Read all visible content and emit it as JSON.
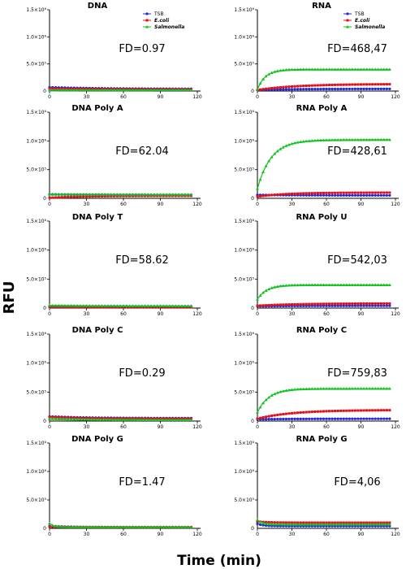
{
  "chart_data": {
    "type": "line",
    "xlabel": "Time (min)",
    "ylabel": "RFU",
    "xlim": [
      0,
      120
    ],
    "ylim": [
      0,
      1500000
    ],
    "x_ticks": [
      "0",
      "30",
      "60",
      "90",
      "120"
    ],
    "y_ticks": [
      "5.0×10⁵",
      "1.0×10⁶",
      "1.5×10⁶"
    ],
    "legend": {
      "placement": "top-right",
      "entries": [
        {
          "name": "TSB",
          "color": "#1f2bd6",
          "marker": "circle"
        },
        {
          "name": "E.coli",
          "color": "#e0101c",
          "marker": "square"
        },
        {
          "name": "Salmonella",
          "color": "#12c21f",
          "marker": "triangle"
        }
      ]
    },
    "panels": [
      {
        "title": "DNA",
        "fd": "FD=0.97",
        "series": [
          {
            "name": "TSB",
            "start": 70000,
            "end": 40000,
            "tau": 40
          },
          {
            "name": "E.coli",
            "start": 45000,
            "end": 30000,
            "tau": 40
          },
          {
            "name": "Salmonella",
            "start": 15000,
            "end": 20000,
            "tau": 30
          }
        ]
      },
      {
        "title": "RNA",
        "fd": "FD=468,47",
        "series": [
          {
            "name": "TSB",
            "start": 20000,
            "end": 40000,
            "tau": 30
          },
          {
            "name": "E.coli",
            "start": 20000,
            "end": 130000,
            "tau": 35
          },
          {
            "name": "Salmonella",
            "start": 30000,
            "end": 400000,
            "tau": 7
          }
        ]
      },
      {
        "title": "DNA Poly A",
        "fd": "FD=62.04",
        "series": [
          {
            "name": "TSB",
            "start": 70000,
            "end": 60000,
            "tau": 40
          },
          {
            "name": "E.coli",
            "start": 10000,
            "end": 45000,
            "tau": 30
          },
          {
            "name": "Salmonella",
            "start": 70000,
            "end": 65000,
            "tau": 40
          }
        ]
      },
      {
        "title": "RNA Poly A",
        "fd": "FD=428,61",
        "series": [
          {
            "name": "TSB",
            "start": 60000,
            "end": 50000,
            "tau": 40
          },
          {
            "name": "E.coli",
            "start": 30000,
            "end": 100000,
            "tau": 25
          },
          {
            "name": "Salmonella",
            "start": 170000,
            "end": 1020000,
            "tau": 12
          }
        ]
      },
      {
        "title": "DNA Poly T",
        "fd": "FD=58.62",
        "series": [
          {
            "name": "TSB",
            "start": 35000,
            "end": 30000,
            "tau": 40
          },
          {
            "name": "E.coli",
            "start": 20000,
            "end": 15000,
            "tau": 40
          },
          {
            "name": "Salmonella",
            "start": 45000,
            "end": 35000,
            "tau": 40
          }
        ]
      },
      {
        "title": "RNA Poly U",
        "fd": "FD=542,03",
        "series": [
          {
            "name": "TSB",
            "start": 30000,
            "end": 40000,
            "tau": 30
          },
          {
            "name": "E.coli",
            "start": 40000,
            "end": 80000,
            "tau": 35
          },
          {
            "name": "Salmonella",
            "start": 150000,
            "end": 400000,
            "tau": 8
          }
        ]
      },
      {
        "title": "DNA Poly C",
        "fd": "FD=0.29",
        "series": [
          {
            "name": "TSB",
            "start": 80000,
            "end": 50000,
            "tau": 30
          },
          {
            "name": "E.coli",
            "start": 70000,
            "end": 40000,
            "tau": 30
          },
          {
            "name": "Salmonella",
            "start": 40000,
            "end": 20000,
            "tau": 30
          }
        ]
      },
      {
        "title": "RNA Poly C",
        "fd": "FD=759,83",
        "series": [
          {
            "name": "TSB",
            "start": 30000,
            "end": 40000,
            "tau": 30
          },
          {
            "name": "E.coli",
            "start": 40000,
            "end": 190000,
            "tau": 30
          },
          {
            "name": "Salmonella",
            "start": 150000,
            "end": 560000,
            "tau": 10
          }
        ]
      },
      {
        "title": "DNA Poly G",
        "fd": "FD=1.47",
        "series": [
          {
            "name": "TSB",
            "start": 40000,
            "end": 20000,
            "tau": 20
          },
          {
            "name": "E.coli",
            "start": 30000,
            "end": 20000,
            "tau": 20
          },
          {
            "name": "Salmonella",
            "start": 90000,
            "end": 25000,
            "tau": 3
          }
        ]
      },
      {
        "title": "RNA Poly G",
        "fd": "FD=4,06",
        "series": [
          {
            "name": "TSB",
            "start": 80000,
            "end": 40000,
            "tau": 5
          },
          {
            "name": "E.coli",
            "start": 120000,
            "end": 100000,
            "tau": 10
          },
          {
            "name": "Salmonella",
            "start": 150000,
            "end": 70000,
            "tau": 4
          }
        ]
      }
    ]
  }
}
